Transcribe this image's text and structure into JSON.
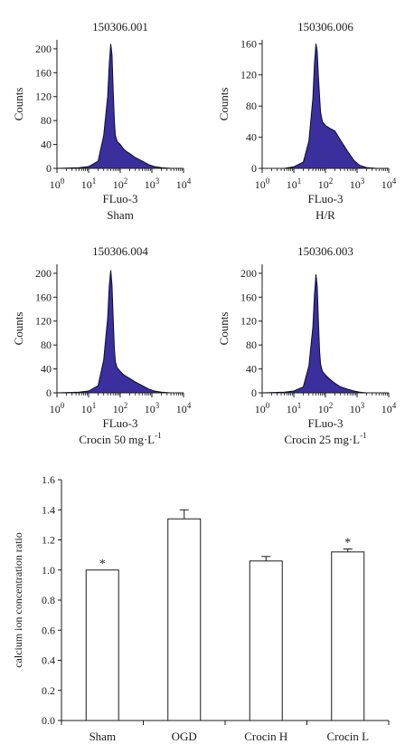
{
  "colors": {
    "fill": "#3b2f9e",
    "outline": "#0c0a2e",
    "axis": "#1a1a1a",
    "bar_fill": "#ffffff"
  },
  "chart_data": [
    {
      "type": "area",
      "title": "150306.001",
      "xlabel": "FLuo-3",
      "caption": "Sham",
      "caption_sup": "",
      "ylabel": "Counts",
      "xscale": "log",
      "xlim": [
        1,
        10000
      ],
      "ylim": [
        0,
        215
      ],
      "yticks": [
        0,
        40,
        80,
        120,
        160,
        200
      ],
      "x": [
        1,
        5,
        10,
        20,
        30,
        40,
        45,
        50,
        55,
        60,
        65,
        70,
        80,
        100,
        130,
        160,
        200,
        300,
        500,
        800,
        1200,
        2000,
        4000,
        10000
      ],
      "y": [
        0,
        1,
        3,
        12,
        55,
        120,
        175,
        208,
        190,
        130,
        80,
        55,
        45,
        40,
        32,
        28,
        25,
        18,
        12,
        6,
        3,
        1,
        0,
        0
      ]
    },
    {
      "type": "area",
      "title": "150306.006",
      "xlabel": "FLuo-3",
      "caption": "H/R",
      "caption_sup": "",
      "ylabel": "Counts",
      "xscale": "log",
      "xlim": [
        1,
        10000
      ],
      "ylim": [
        0,
        165
      ],
      "yticks": [
        0,
        40,
        80,
        120,
        160
      ],
      "x": [
        1,
        5,
        10,
        20,
        30,
        40,
        45,
        50,
        55,
        60,
        65,
        70,
        80,
        100,
        130,
        160,
        200,
        300,
        500,
        800,
        1200,
        2000,
        4000,
        10000
      ],
      "y": [
        0,
        0,
        2,
        8,
        35,
        90,
        135,
        160,
        150,
        118,
        92,
        72,
        60,
        55,
        52,
        50,
        48,
        36,
        22,
        10,
        4,
        1,
        0,
        0
      ]
    },
    {
      "type": "area",
      "title": "150306.004",
      "xlabel": "FLuo-3",
      "caption": "Crocin 50 mg·L",
      "caption_sup": "-1",
      "ylabel": "Counts",
      "xscale": "log",
      "xlim": [
        1,
        10000
      ],
      "ylim": [
        0,
        215
      ],
      "yticks": [
        0,
        40,
        80,
        120,
        160,
        200
      ],
      "x": [
        1,
        5,
        10,
        20,
        30,
        40,
        45,
        50,
        55,
        60,
        65,
        70,
        80,
        100,
        130,
        160,
        200,
        300,
        500,
        800,
        1200,
        2000,
        4000,
        10000
      ],
      "y": [
        0,
        1,
        3,
        12,
        55,
        125,
        180,
        205,
        180,
        125,
        75,
        52,
        42,
        36,
        30,
        27,
        24,
        18,
        12,
        6,
        3,
        1,
        0,
        0
      ]
    },
    {
      "type": "area",
      "title": "150306.003",
      "xlabel": "FLuo-3",
      "caption": "Crocin 25 mg·L",
      "caption_sup": "-1",
      "ylabel": "Counts",
      "xscale": "log",
      "xlim": [
        1,
        10000
      ],
      "ylim": [
        0,
        215
      ],
      "yticks": [
        0,
        40,
        80,
        120,
        160,
        200
      ],
      "x": [
        1,
        5,
        10,
        20,
        30,
        40,
        45,
        50,
        55,
        60,
        65,
        70,
        80,
        100,
        130,
        160,
        200,
        300,
        500,
        800,
        1200,
        2000,
        4000,
        10000
      ],
      "y": [
        0,
        1,
        3,
        10,
        45,
        110,
        165,
        198,
        178,
        120,
        70,
        48,
        36,
        30,
        24,
        20,
        16,
        10,
        6,
        3,
        1,
        0,
        0,
        0
      ]
    },
    {
      "type": "bar",
      "categories": [
        "Sham",
        "OGD",
        "Crocin H",
        "Crocin L"
      ],
      "values": [
        1.0,
        1.34,
        1.06,
        1.12
      ],
      "errors": [
        0.0,
        0.06,
        0.03,
        0.02
      ],
      "significance": [
        "*",
        "",
        "",
        "*"
      ],
      "ylabel": "calcium ion concentration ratio",
      "xlabel": "",
      "ylim": [
        0,
        1.6
      ],
      "yticks": [
        "0.0",
        "0.2",
        "0.4",
        "0.6",
        "0.8",
        "1.0",
        "1.2",
        "1.4",
        "1.6"
      ]
    }
  ]
}
